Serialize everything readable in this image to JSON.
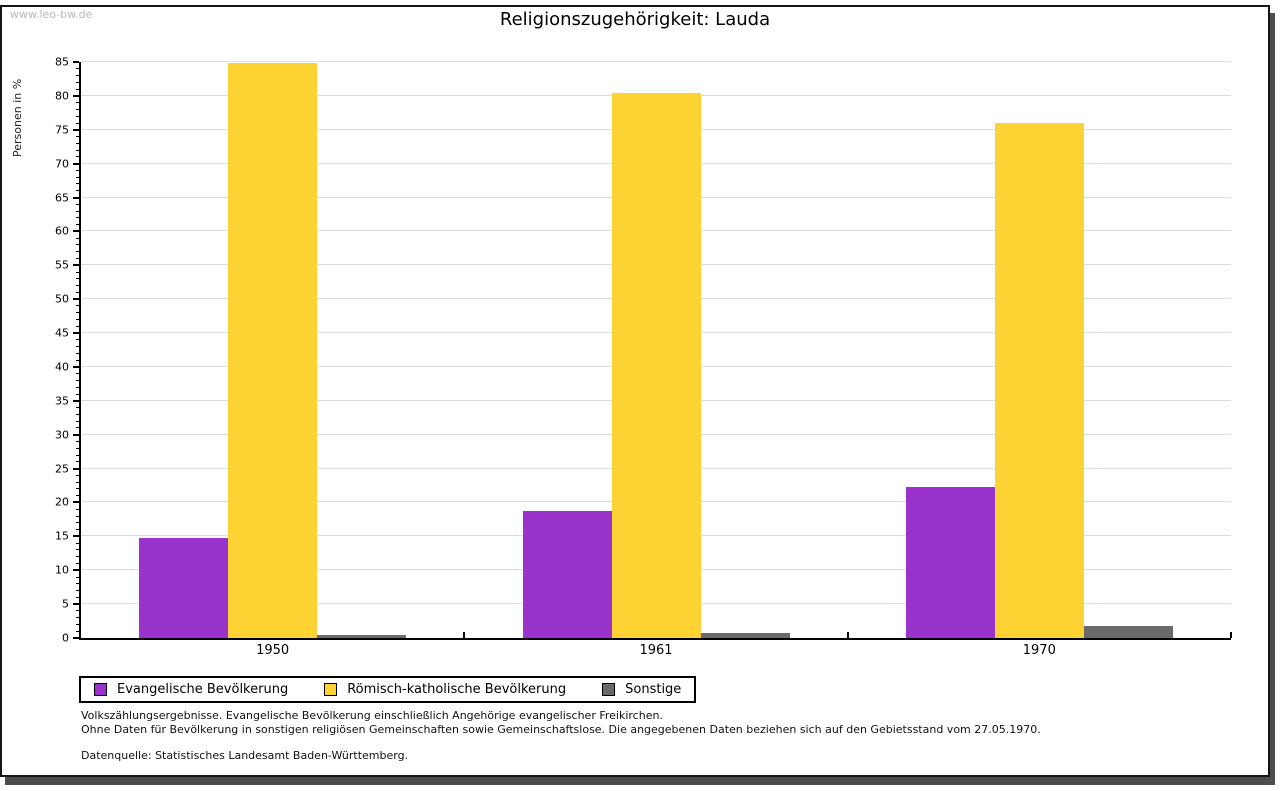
{
  "watermark": "www.leo-bw.de",
  "title": "Religionszugehörigkeit: Lauda",
  "chart_data": {
    "type": "bar",
    "title": "Religionszugehörigkeit: Lauda",
    "ylabel": "Personen in %",
    "categories": [
      "1950",
      "1961",
      "1970"
    ],
    "series": [
      {
        "name": "Evangelische Bevölkerung",
        "color": "#9933cc",
        "values": [
          14.7,
          18.8,
          22.3
        ]
      },
      {
        "name": "Römisch-katholische Bevölkerung",
        "color": "#fdd334",
        "values": [
          84.9,
          80.5,
          76.0
        ]
      },
      {
        "name": "Sonstige",
        "color": "#6a6a6a",
        "values": [
          0.4,
          0.7,
          1.7
        ]
      }
    ],
    "ylim": [
      0,
      85
    ],
    "ytick_step": 5,
    "minor_tick_step": 1,
    "grid": true,
    "gridline_color": "#dcdcdc",
    "legend_position": "bottom"
  },
  "footnotes": {
    "line1": "Volkszählungsergebnisse. Evangelische Bevölkerung einschließlich Angehörige evangelischer Freikirchen.",
    "line2": "Ohne Daten für Bevölkerung in sonstigen religiösen Gemeinschaften sowie Gemeinschaftslose. Die angegebenen Daten beziehen sich auf den Gebietsstand vom 27.05.1970.",
    "source": "Datenquelle: Statistisches Landesamt Baden-Württemberg."
  }
}
